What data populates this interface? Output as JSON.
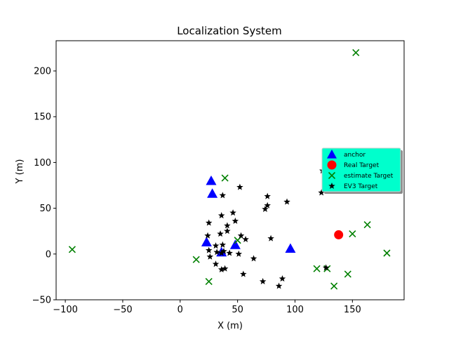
{
  "chart_data": {
    "type": "scatter",
    "title": "Localization System",
    "xlabel": "X (m)",
    "ylabel": "Y (m)",
    "xlim": [
      -108,
      195
    ],
    "ylim": [
      -50,
      233
    ],
    "xticks": [
      -100,
      -50,
      0,
      50,
      100,
      150
    ],
    "yticks": [
      -50,
      0,
      50,
      100,
      150,
      200
    ],
    "xtick_labels": [
      "−100",
      "−50",
      "0",
      "50",
      "100",
      "150"
    ],
    "ytick_labels": [
      "−50",
      "0",
      "50",
      "100",
      "150",
      "200"
    ],
    "grid": false,
    "legend_position": "center-right",
    "legend_background": "#00ffcc",
    "series": [
      {
        "name": "anchor",
        "marker": "triangle",
        "color": "#0000ff",
        "points": [
          [
            27,
            80
          ],
          [
            28,
            66
          ],
          [
            23,
            13
          ],
          [
            36,
            2
          ],
          [
            48,
            10
          ],
          [
            96,
            6
          ]
        ]
      },
      {
        "name": "Real Target",
        "marker": "circle",
        "color": "#ff0000",
        "points": [
          [
            138,
            21
          ]
        ]
      },
      {
        "name": "estimate Target",
        "marker": "x",
        "color": "#008000",
        "points": [
          [
            153,
            220
          ],
          [
            39,
            83
          ],
          [
            -94,
            5
          ],
          [
            14,
            -6
          ],
          [
            25,
            -30
          ],
          [
            50,
            15
          ],
          [
            150,
            22
          ],
          [
            163,
            32
          ],
          [
            180,
            1
          ],
          [
            119,
            -16
          ],
          [
            128,
            -16
          ],
          [
            146,
            -22
          ],
          [
            134,
            -35
          ]
        ]
      },
      {
        "name": "EV3 Target",
        "marker": "star",
        "color": "#000000",
        "points": [
          [
            124,
            91
          ],
          [
            123,
            67
          ],
          [
            52,
            73
          ],
          [
            37,
            64
          ],
          [
            76,
            63
          ],
          [
            76,
            53
          ],
          [
            74,
            49
          ],
          [
            93,
            57
          ],
          [
            46,
            45
          ],
          [
            36,
            42
          ],
          [
            48,
            36
          ],
          [
            25,
            34
          ],
          [
            41,
            31
          ],
          [
            41,
            25
          ],
          [
            35,
            22
          ],
          [
            53,
            20
          ],
          [
            57,
            16
          ],
          [
            79,
            17
          ],
          [
            24,
            20
          ],
          [
            31,
            9
          ],
          [
            37,
            10
          ],
          [
            25,
            4
          ],
          [
            32,
            2
          ],
          [
            36,
            1
          ],
          [
            38,
            3
          ],
          [
            43,
            1
          ],
          [
            51,
            0
          ],
          [
            26,
            -3
          ],
          [
            64,
            -5
          ],
          [
            31,
            -11
          ],
          [
            36,
            -17
          ],
          [
            39,
            -16
          ],
          [
            55,
            -22
          ],
          [
            72,
            -30
          ],
          [
            86,
            -35
          ],
          [
            89,
            -27
          ],
          [
            127,
            -15
          ]
        ]
      }
    ]
  }
}
